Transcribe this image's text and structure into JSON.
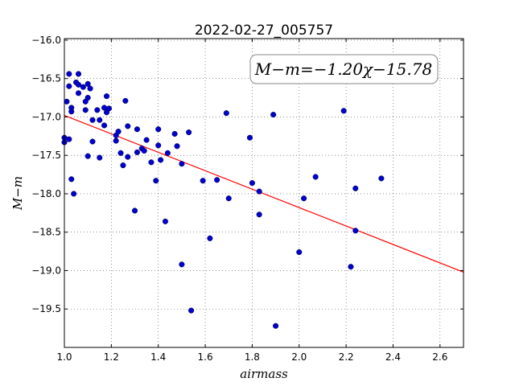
{
  "chart_data": {
    "type": "scatter",
    "title": "2022-02-27_005757",
    "xlabel": "airmass",
    "ylabel": "M−m",
    "xlim": [
      1.0,
      2.7
    ],
    "ylim": [
      -15.98,
      -20.0
    ],
    "y_inverted": true,
    "grid": true,
    "x_ticks": [
      1.0,
      1.2,
      1.4,
      1.6,
      1.8,
      2.0,
      2.2,
      2.4,
      2.6
    ],
    "x_tick_labels": [
      "1.0",
      "1.2",
      "1.4",
      "1.6",
      "1.8",
      "2.0",
      "2.2",
      "2.4",
      "2.6"
    ],
    "y_ticks": [
      -16.0,
      -16.5,
      -17.0,
      -17.5,
      -18.0,
      -18.5,
      -19.0,
      -19.5
    ],
    "y_tick_labels": [
      "−16.0",
      "−16.5",
      "−17.0",
      "−17.5",
      "−18.0",
      "−18.5",
      "−19.0",
      "−19.5"
    ],
    "annotation": "M−m=−1.20χ−15.78",
    "fit": {
      "slope": -1.2,
      "intercept": -15.78,
      "x_range": [
        1.0,
        2.7
      ],
      "color": "#ff0000"
    },
    "marker_color": "#0000cc",
    "points": [
      [
        1.0,
        -17.27
      ],
      [
        1.0,
        -17.33
      ],
      [
        1.01,
        -16.8
      ],
      [
        1.02,
        -16.44
      ],
      [
        1.02,
        -16.6
      ],
      [
        1.02,
        -17.29
      ],
      [
        1.03,
        -16.88
      ],
      [
        1.03,
        -16.93
      ],
      [
        1.03,
        -17.81
      ],
      [
        1.04,
        -18.0
      ],
      [
        1.05,
        -16.55
      ],
      [
        1.06,
        -16.44
      ],
      [
        1.06,
        -16.58
      ],
      [
        1.06,
        -16.69
      ],
      [
        1.08,
        -16.61
      ],
      [
        1.09,
        -16.91
      ],
      [
        1.09,
        -16.8
      ],
      [
        1.1,
        -16.57
      ],
      [
        1.1,
        -16.75
      ],
      [
        1.1,
        -17.51
      ],
      [
        1.11,
        -16.63
      ],
      [
        1.12,
        -17.04
      ],
      [
        1.12,
        -17.32
      ],
      [
        1.14,
        -16.91
      ],
      [
        1.15,
        -17.04
      ],
      [
        1.15,
        -17.53
      ],
      [
        1.17,
        -17.11
      ],
      [
        1.17,
        -16.88
      ],
      [
        1.18,
        -16.94
      ],
      [
        1.18,
        -16.73
      ],
      [
        1.19,
        -16.89
      ],
      [
        1.22,
        -17.31
      ],
      [
        1.22,
        -17.24
      ],
      [
        1.23,
        -17.19
      ],
      [
        1.24,
        -17.47
      ],
      [
        1.25,
        -17.63
      ],
      [
        1.26,
        -16.79
      ],
      [
        1.27,
        -17.12
      ],
      [
        1.27,
        -17.52
      ],
      [
        1.3,
        -18.22
      ],
      [
        1.31,
        -17.16
      ],
      [
        1.31,
        -17.46
      ],
      [
        1.33,
        -17.41
      ],
      [
        1.34,
        -17.44
      ],
      [
        1.35,
        -17.3
      ],
      [
        1.37,
        -17.59
      ],
      [
        1.39,
        -17.83
      ],
      [
        1.4,
        -17.16
      ],
      [
        1.4,
        -17.37
      ],
      [
        1.41,
        -17.56
      ],
      [
        1.43,
        -18.36
      ],
      [
        1.44,
        -17.47
      ],
      [
        1.47,
        -17.22
      ],
      [
        1.48,
        -17.38
      ],
      [
        1.5,
        -17.61
      ],
      [
        1.5,
        -18.92
      ],
      [
        1.53,
        -17.2
      ],
      [
        1.54,
        -19.52
      ],
      [
        1.59,
        -17.83
      ],
      [
        1.62,
        -18.58
      ],
      [
        1.65,
        -17.82
      ],
      [
        1.69,
        -16.95
      ],
      [
        1.7,
        -18.06
      ],
      [
        1.79,
        -17.27
      ],
      [
        1.8,
        -17.86
      ],
      [
        1.83,
        -17.97
      ],
      [
        1.83,
        -18.27
      ],
      [
        1.89,
        -16.97
      ],
      [
        1.9,
        -19.72
      ],
      [
        2.0,
        -18.76
      ],
      [
        2.02,
        -18.06
      ],
      [
        2.07,
        -17.78
      ],
      [
        2.19,
        -16.92
      ],
      [
        2.22,
        -18.95
      ],
      [
        2.24,
        -17.93
      ],
      [
        2.24,
        -18.48
      ],
      [
        2.35,
        -17.8
      ]
    ]
  }
}
